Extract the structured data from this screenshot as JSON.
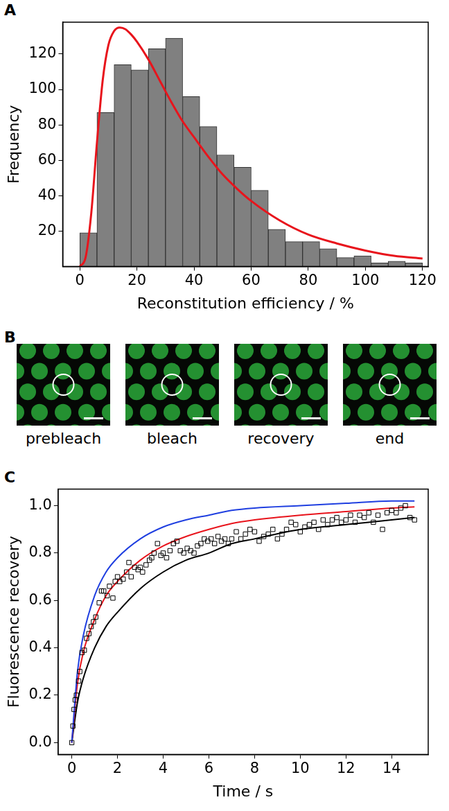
{
  "chart_data": [
    {
      "panel": "A",
      "type": "histogram",
      "x_label": "Reconstitution efficiency / %",
      "y_label": "Frequency",
      "bins": [
        0,
        6,
        12,
        18,
        24,
        30,
        36,
        42,
        48,
        54,
        60,
        66,
        72,
        78,
        84,
        90,
        96,
        102,
        108,
        114,
        120
      ],
      "values": [
        19,
        87,
        114,
        111,
        123,
        129,
        96,
        79,
        63,
        56,
        43,
        21,
        14,
        14,
        10,
        5,
        6,
        2,
        3,
        2
      ],
      "color": "#808080",
      "xlim": [
        -6,
        122
      ],
      "xticks": [
        0,
        20,
        40,
        60,
        80,
        100,
        120
      ],
      "ylim": [
        0,
        138
      ],
      "yticks": [
        20,
        40,
        60,
        80,
        100,
        120
      ],
      "grid": false,
      "fit": {
        "type": "line",
        "color": "#e8141c",
        "x": [
          0,
          2,
          4,
          6,
          8,
          10,
          12,
          14,
          16,
          18,
          20,
          24,
          28,
          32,
          36,
          40,
          45,
          50,
          55,
          60,
          70,
          80,
          90,
          100,
          110,
          120
        ],
        "values": [
          0,
          5,
          30,
          70,
          105,
          125,
          133,
          135,
          134,
          131,
          127,
          117,
          105,
          93,
          82,
          73,
          62,
          52,
          44,
          37,
          26,
          18,
          13,
          9,
          6,
          4.5
        ]
      }
    },
    {
      "panel": "C",
      "type": "scatter",
      "x_label": "Time / s",
      "y_label": "Fluorescence recovery",
      "x": [
        0,
        0.05,
        0.1,
        0.15,
        0.2,
        0.3,
        0.35,
        0.45,
        0.55,
        0.65,
        0.75,
        0.85,
        0.95,
        1.05,
        1.2,
        1.3,
        1.4,
        1.55,
        1.65,
        1.8,
        1.9,
        2.0,
        2.1,
        2.25,
        2.4,
        2.5,
        2.6,
        2.75,
        2.9,
        3.0,
        3.1,
        3.25,
        3.4,
        3.5,
        3.6,
        3.75,
        3.9,
        4.0,
        4.15,
        4.3,
        4.45,
        4.6,
        4.75,
        4.9,
        5.05,
        5.2,
        5.35,
        5.5,
        5.65,
        5.8,
        5.95,
        6.1,
        6.25,
        6.4,
        6.55,
        6.7,
        6.85,
        7.0,
        7.2,
        7.4,
        7.6,
        7.8,
        8.0,
        8.2,
        8.4,
        8.6,
        8.8,
        9.0,
        9.2,
        9.4,
        9.6,
        9.8,
        10.0,
        10.2,
        10.4,
        10.6,
        10.8,
        11.0,
        11.2,
        11.4,
        11.6,
        11.8,
        12.0,
        12.2,
        12.4,
        12.6,
        12.8,
        13.0,
        13.2,
        13.4,
        13.6,
        13.8,
        14.0,
        14.2,
        14.4,
        14.6,
        14.8,
        15.0
      ],
      "values": [
        0,
        0.07,
        0.14,
        0.18,
        0.2,
        0.26,
        0.3,
        0.38,
        0.39,
        0.44,
        0.46,
        0.49,
        0.51,
        0.53,
        0.59,
        0.64,
        0.64,
        0.62,
        0.66,
        0.61,
        0.68,
        0.7,
        0.68,
        0.69,
        0.72,
        0.76,
        0.7,
        0.74,
        0.73,
        0.74,
        0.72,
        0.75,
        0.77,
        0.78,
        0.8,
        0.84,
        0.79,
        0.8,
        0.78,
        0.81,
        0.84,
        0.85,
        0.81,
        0.8,
        0.82,
        0.81,
        0.8,
        0.83,
        0.84,
        0.86,
        0.85,
        0.86,
        0.84,
        0.87,
        0.85,
        0.86,
        0.84,
        0.86,
        0.89,
        0.86,
        0.88,
        0.9,
        0.89,
        0.85,
        0.87,
        0.88,
        0.9,
        0.86,
        0.88,
        0.9,
        0.93,
        0.92,
        0.89,
        0.91,
        0.92,
        0.93,
        0.9,
        0.94,
        0.92,
        0.94,
        0.95,
        0.93,
        0.94,
        0.96,
        0.93,
        0.96,
        0.95,
        0.97,
        0.93,
        0.96,
        0.9,
        0.97,
        0.98,
        0.97,
        0.99,
        1.0,
        0.95,
        0.94
      ],
      "color": "#000000",
      "marker": "square",
      "xlim": [
        -0.6,
        15.6
      ],
      "xticks": [
        0,
        2,
        4,
        6,
        8,
        10,
        12,
        14
      ],
      "ylim": [
        -0.05,
        1.07
      ],
      "yticks": [
        {
          "value": 0,
          "label": "0.0"
        },
        0.2,
        0.4,
        0.6,
        0.8,
        {
          "value": 1,
          "label": "1.0"
        }
      ],
      "grid": false,
      "series": [
        {
          "type": "line",
          "color": "#1f3fe0",
          "x": [
            0,
            0.25,
            0.5,
            1,
            1.5,
            2,
            3,
            4,
            5,
            6,
            7,
            8,
            10,
            12,
            14,
            15
          ],
          "values": [
            0,
            0.3,
            0.45,
            0.62,
            0.72,
            0.78,
            0.86,
            0.91,
            0.94,
            0.96,
            0.98,
            0.99,
            1.0,
            1.01,
            1.02,
            1.02
          ]
        },
        {
          "type": "line",
          "color": "#e8141c",
          "x": [
            0,
            0.25,
            0.5,
            1,
            1.5,
            2,
            3,
            4,
            5,
            6,
            7,
            8,
            10,
            12,
            14,
            15
          ],
          "values": [
            0,
            0.25,
            0.38,
            0.52,
            0.62,
            0.68,
            0.77,
            0.83,
            0.87,
            0.9,
            0.925,
            0.94,
            0.96,
            0.975,
            0.99,
            0.995
          ]
        },
        {
          "type": "line",
          "color": "#000000",
          "x": [
            0,
            0.25,
            0.5,
            1,
            1.5,
            2,
            3,
            4,
            5,
            6,
            7,
            8,
            10,
            12,
            14,
            15
          ],
          "values": [
            0,
            0.17,
            0.27,
            0.4,
            0.49,
            0.55,
            0.65,
            0.72,
            0.77,
            0.8,
            0.84,
            0.86,
            0.9,
            0.92,
            0.94,
            0.95
          ]
        }
      ]
    }
  ],
  "images": {
    "panel": "B",
    "captions": [
      "prebleach",
      "bleach",
      "recovery",
      "end"
    ]
  }
}
